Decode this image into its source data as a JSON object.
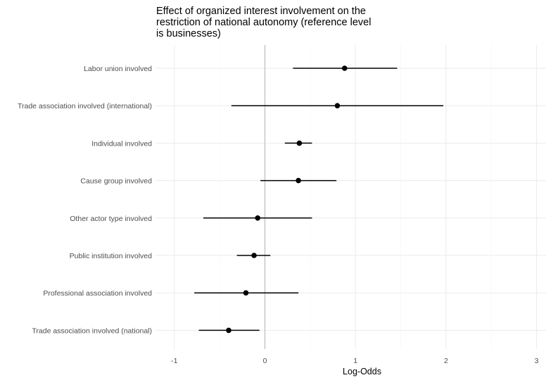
{
  "chart_data": {
    "type": "forest",
    "title_lines": [
      "Effect of organized interest involvement on the",
      "restriction of national autonomy (reference level",
      "is businesses)"
    ],
    "xlabel": "Log-Odds",
    "ylabel": "",
    "xlim": [
      -1,
      3
    ],
    "xticks": [
      "-1",
      "0",
      "1",
      "2",
      "3"
    ],
    "xtick_values": [
      -1,
      0,
      1,
      2,
      3
    ],
    "reference_line": 0,
    "grid": true,
    "point_color": "#000000",
    "grid_color": "#ebebeb",
    "reference_color": "#bdbdbd",
    "categories": [
      "Labor union involved",
      "Trade association involved (international)",
      "Individual involved",
      "Cause group involved",
      "Other actor type involved",
      "Public institution involved",
      "Professional association involved",
      "Trade association involved (national)"
    ],
    "estimates": [
      0.88,
      0.8,
      0.38,
      0.37,
      -0.08,
      -0.12,
      -0.21,
      -0.4
    ],
    "lower": [
      0.31,
      -0.37,
      0.22,
      -0.05,
      -0.68,
      -0.31,
      -0.78,
      -0.73
    ],
    "upper": [
      1.46,
      1.97,
      0.52,
      0.79,
      0.52,
      0.06,
      0.37,
      -0.06
    ]
  }
}
